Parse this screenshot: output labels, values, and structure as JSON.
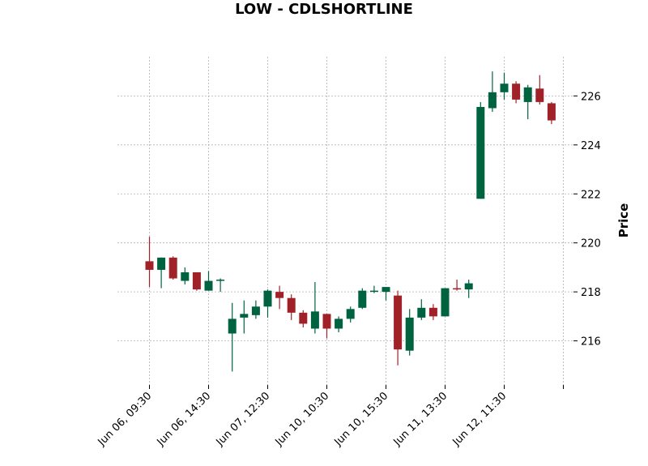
{
  "chart_data": {
    "type": "candlestick",
    "title": "LOW - CDLSHORTLINE",
    "ylabel": "Price",
    "ylim": [
      214.2,
      227.6
    ],
    "yticks": [
      216,
      218,
      220,
      222,
      224,
      226
    ],
    "grid": true,
    "y_axis_side": "right",
    "x_tick_labels": [
      {
        "index": 0,
        "label": "Jun 06, 09:30"
      },
      {
        "index": 5,
        "label": "Jun 06, 14:30"
      },
      {
        "index": 10,
        "label": "Jun 07, 12:30"
      },
      {
        "index": 15,
        "label": "Jun 10, 10:30"
      },
      {
        "index": 20,
        "label": "Jun 10, 15:30"
      },
      {
        "index": 25,
        "label": "Jun 11, 13:30"
      },
      {
        "index": 30,
        "label": "Jun 12, 11:30"
      },
      {
        "index": 35,
        "label": ""
      }
    ],
    "colors": {
      "up": "#006340",
      "down": "#a02128"
    },
    "candles": [
      {
        "o": 219.25,
        "h": 220.25,
        "l": 218.2,
        "c": 218.9
      },
      {
        "o": 218.9,
        "h": 219.4,
        "l": 218.15,
        "c": 219.4
      },
      {
        "o": 219.4,
        "h": 219.45,
        "l": 218.5,
        "c": 218.55
      },
      {
        "o": 218.45,
        "h": 219.0,
        "l": 218.3,
        "c": 218.8
      },
      {
        "o": 218.8,
        "h": 218.8,
        "l": 218.05,
        "c": 218.1
      },
      {
        "o": 218.05,
        "h": 218.85,
        "l": 218.05,
        "c": 218.45
      },
      {
        "o": 218.45,
        "h": 218.55,
        "l": 218.0,
        "c": 218.5
      },
      {
        "o": 216.3,
        "h": 217.55,
        "l": 214.75,
        "c": 216.9
      },
      {
        "o": 216.95,
        "h": 217.65,
        "l": 216.3,
        "c": 217.1
      },
      {
        "o": 217.05,
        "h": 217.65,
        "l": 216.9,
        "c": 217.4
      },
      {
        "o": 217.4,
        "h": 218.1,
        "l": 216.95,
        "c": 218.05
      },
      {
        "o": 218.0,
        "h": 218.25,
        "l": 217.3,
        "c": 217.75
      },
      {
        "o": 217.75,
        "h": 217.9,
        "l": 216.85,
        "c": 217.15
      },
      {
        "o": 217.15,
        "h": 217.25,
        "l": 216.55,
        "c": 216.7
      },
      {
        "o": 216.5,
        "h": 218.4,
        "l": 216.3,
        "c": 217.2
      },
      {
        "o": 217.1,
        "h": 217.1,
        "l": 216.1,
        "c": 216.5
      },
      {
        "o": 216.5,
        "h": 217.0,
        "l": 216.35,
        "c": 216.9
      },
      {
        "o": 216.9,
        "h": 217.4,
        "l": 216.75,
        "c": 217.3
      },
      {
        "o": 217.35,
        "h": 218.15,
        "l": 217.3,
        "c": 218.05
      },
      {
        "o": 218.05,
        "h": 218.25,
        "l": 217.95,
        "c": 218.05
      },
      {
        "o": 218.0,
        "h": 218.2,
        "l": 217.65,
        "c": 218.2
      },
      {
        "o": 217.85,
        "h": 218.05,
        "l": 215.0,
        "c": 215.65
      },
      {
        "o": 215.6,
        "h": 217.3,
        "l": 215.4,
        "c": 216.95
      },
      {
        "o": 216.95,
        "h": 217.7,
        "l": 216.85,
        "c": 217.35
      },
      {
        "o": 217.35,
        "h": 217.5,
        "l": 216.85,
        "c": 217.0
      },
      {
        "o": 217.0,
        "h": 218.15,
        "l": 217.0,
        "c": 218.15
      },
      {
        "o": 218.15,
        "h": 218.5,
        "l": 218.05,
        "c": 218.1
      },
      {
        "o": 218.1,
        "h": 218.5,
        "l": 217.75,
        "c": 218.35
      },
      {
        "o": 221.8,
        "h": 225.75,
        "l": 221.8,
        "c": 225.55
      },
      {
        "o": 225.5,
        "h": 227.0,
        "l": 225.35,
        "c": 226.15
      },
      {
        "o": 226.15,
        "h": 226.95,
        "l": 225.85,
        "c": 226.5
      },
      {
        "o": 226.5,
        "h": 226.6,
        "l": 225.7,
        "c": 225.85
      },
      {
        "o": 225.75,
        "h": 226.45,
        "l": 225.05,
        "c": 226.35
      },
      {
        "o": 226.3,
        "h": 226.85,
        "l": 225.65,
        "c": 225.75
      },
      {
        "o": 225.7,
        "h": 225.75,
        "l": 224.85,
        "c": 225.0
      }
    ]
  }
}
